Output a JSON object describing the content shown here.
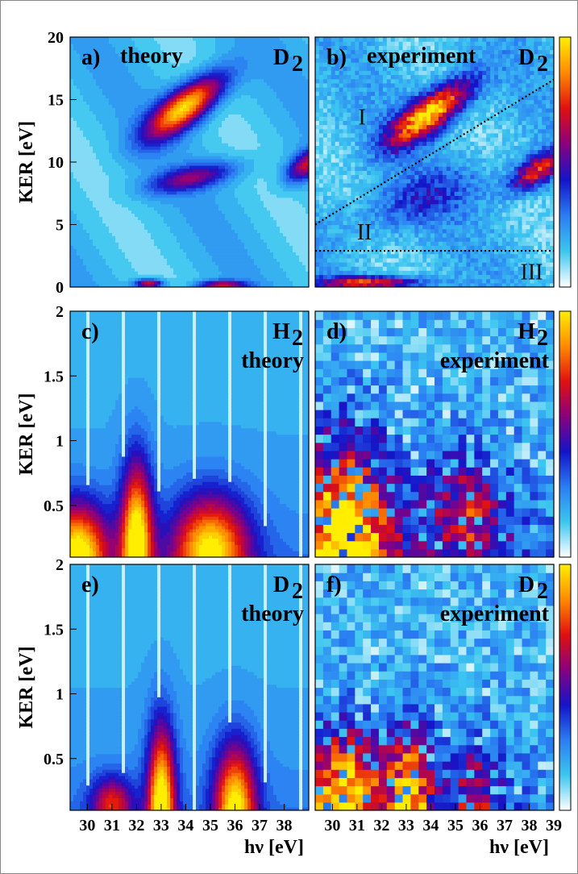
{
  "chart_data": {
    "type": "heatmap",
    "colormap": [
      "#ffffff",
      "#3cc6f0",
      "#2a7df2",
      "#1414c8",
      "#8a0080",
      "#e01010",
      "#ff8a00",
      "#ffee00"
    ],
    "colorbar": {
      "title": "",
      "ticks": []
    },
    "xlabel": "hν [eV]",
    "ylabel": "KER [eV]",
    "xlim": [
      29.3,
      39
    ],
    "x_ticks_theory": [
      "30",
      "31",
      "32",
      "33",
      "34",
      "35",
      "36",
      "37",
      "38"
    ],
    "x_ticks_experiment": [
      "30",
      "31",
      "32",
      "33",
      "34",
      "35",
      "36",
      "37",
      "38",
      "39"
    ],
    "panels": [
      {
        "id": "a",
        "label": "a)",
        "title": "theory",
        "molecule": "D",
        "molecule_sub": "2",
        "ylim": [
          0,
          20
        ],
        "y_ticks": [
          "0",
          "5",
          "10",
          "15",
          "20"
        ],
        "model": "theory_ab",
        "peaks": [
          {
            "x": 34.0,
            "y": 14.5,
            "sx": 1.1,
            "sy": 1.2,
            "a": 1.0,
            "slope": 1.2
          },
          {
            "x": 34.3,
            "y": 8.8,
            "sx": 1.3,
            "sy": 0.7,
            "a": 0.45,
            "slope": 0.4
          },
          {
            "x": 38.9,
            "y": 9.8,
            "sx": 0.6,
            "sy": 0.8,
            "a": 0.6,
            "slope": 0.9
          },
          {
            "x": 32.5,
            "y": 0.3,
            "sx": 0.4,
            "sy": 0.25,
            "a": 0.7,
            "slope": 0
          },
          {
            "x": 35.5,
            "y": 0.2,
            "sx": 0.7,
            "sy": 0.25,
            "a": 0.6,
            "slope": 0
          }
        ]
      },
      {
        "id": "b",
        "label": "b)",
        "title": "experiment",
        "molecule": "D",
        "molecule_sub": "2",
        "ylim": [
          0,
          20
        ],
        "y_ticks": [],
        "model": "exp_ab",
        "regions": [
          {
            "label": "I",
            "x": 31.2,
            "y": 13.0
          },
          {
            "label": "II",
            "x": 31.3,
            "y": 3.8
          },
          {
            "label": "III",
            "x": 38.1,
            "y": 0.6
          }
        ],
        "divider_lines": [
          {
            "x": [
              29.3,
              39
            ],
            "y": [
              5.0,
              16.6
            ]
          },
          {
            "x": [
              29.3,
              39
            ],
            "y": [
              2.9,
              2.9
            ]
          }
        ],
        "peaks": [
          {
            "x": 34.0,
            "y": 14.0,
            "sx": 1.2,
            "sy": 1.2,
            "a": 1.0,
            "slope": 1.2
          },
          {
            "x": 38.3,
            "y": 9.3,
            "sx": 0.8,
            "sy": 0.9,
            "a": 0.7,
            "slope": 0.9
          },
          {
            "x": 33.5,
            "y": 7.0,
            "sx": 2.0,
            "sy": 1.5,
            "a": 0.25,
            "slope": 0.6
          },
          {
            "x": 31.5,
            "y": 0.4,
            "sx": 1.5,
            "sy": 0.35,
            "a": 0.75,
            "slope": 0
          }
        ]
      },
      {
        "id": "c",
        "label": "c)",
        "title": "theory",
        "molecule": "H",
        "molecule_sub": "2",
        "ylim": [
          0.1,
          2
        ],
        "y_ticks": [
          "0.5",
          "1",
          "1.5",
          "2"
        ],
        "model": "theory_low",
        "peaks": [
          {
            "x": 29.6,
            "y": 0.12,
            "sx": 0.9,
            "sy": 0.28,
            "a": 0.95,
            "slope": 0
          },
          {
            "x": 32.0,
            "y": 0.2,
            "sx": 0.45,
            "sy": 0.45,
            "a": 1.0,
            "slope": 0
          },
          {
            "x": 35.0,
            "y": 0.15,
            "sx": 1.1,
            "sy": 0.3,
            "a": 0.9,
            "slope": 0
          }
        ]
      },
      {
        "id": "d",
        "label": "d)",
        "title": "experiment",
        "molecule": "H",
        "molecule_sub": "2",
        "ylim": [
          0.1,
          2
        ],
        "y_ticks": [],
        "model": "exp_low",
        "peaks": [
          {
            "x": 30.5,
            "y": 0.2,
            "sx": 1.4,
            "sy": 0.55,
            "a": 1.0,
            "slope": 0
          },
          {
            "x": 35.5,
            "y": 0.4,
            "sx": 1.2,
            "sy": 0.35,
            "a": 0.5,
            "slope": 0
          }
        ]
      },
      {
        "id": "e",
        "label": "e)",
        "title": "theory",
        "molecule": "D",
        "molecule_sub": "2",
        "ylim": [
          0.1,
          2
        ],
        "y_ticks": [
          "0.5",
          "1",
          "1.5",
          "2"
        ],
        "model": "theory_low",
        "peaks": [
          {
            "x": 33.0,
            "y": 0.12,
            "sx": 0.4,
            "sy": 0.45,
            "a": 1.0,
            "slope": 0
          },
          {
            "x": 36.0,
            "y": 0.12,
            "sx": 0.6,
            "sy": 0.35,
            "a": 0.9,
            "slope": 0
          },
          {
            "x": 31.0,
            "y": 0.15,
            "sx": 0.6,
            "sy": 0.15,
            "a": 0.55,
            "slope": 0
          }
        ]
      },
      {
        "id": "f",
        "label": "f)",
        "title": "experiment",
        "molecule": "D",
        "molecule_sub": "2",
        "ylim": [
          0.1,
          2
        ],
        "y_ticks": [],
        "model": "exp_low",
        "peaks": [
          {
            "x": 30.5,
            "y": 0.2,
            "sx": 1.2,
            "sy": 0.35,
            "a": 0.9,
            "slope": 0
          },
          {
            "x": 33.2,
            "y": 0.2,
            "sx": 0.6,
            "sy": 0.35,
            "a": 0.8,
            "slope": 0
          },
          {
            "x": 35.8,
            "y": 0.2,
            "sx": 0.7,
            "sy": 0.3,
            "a": 0.45,
            "slope": 0
          }
        ]
      }
    ]
  }
}
